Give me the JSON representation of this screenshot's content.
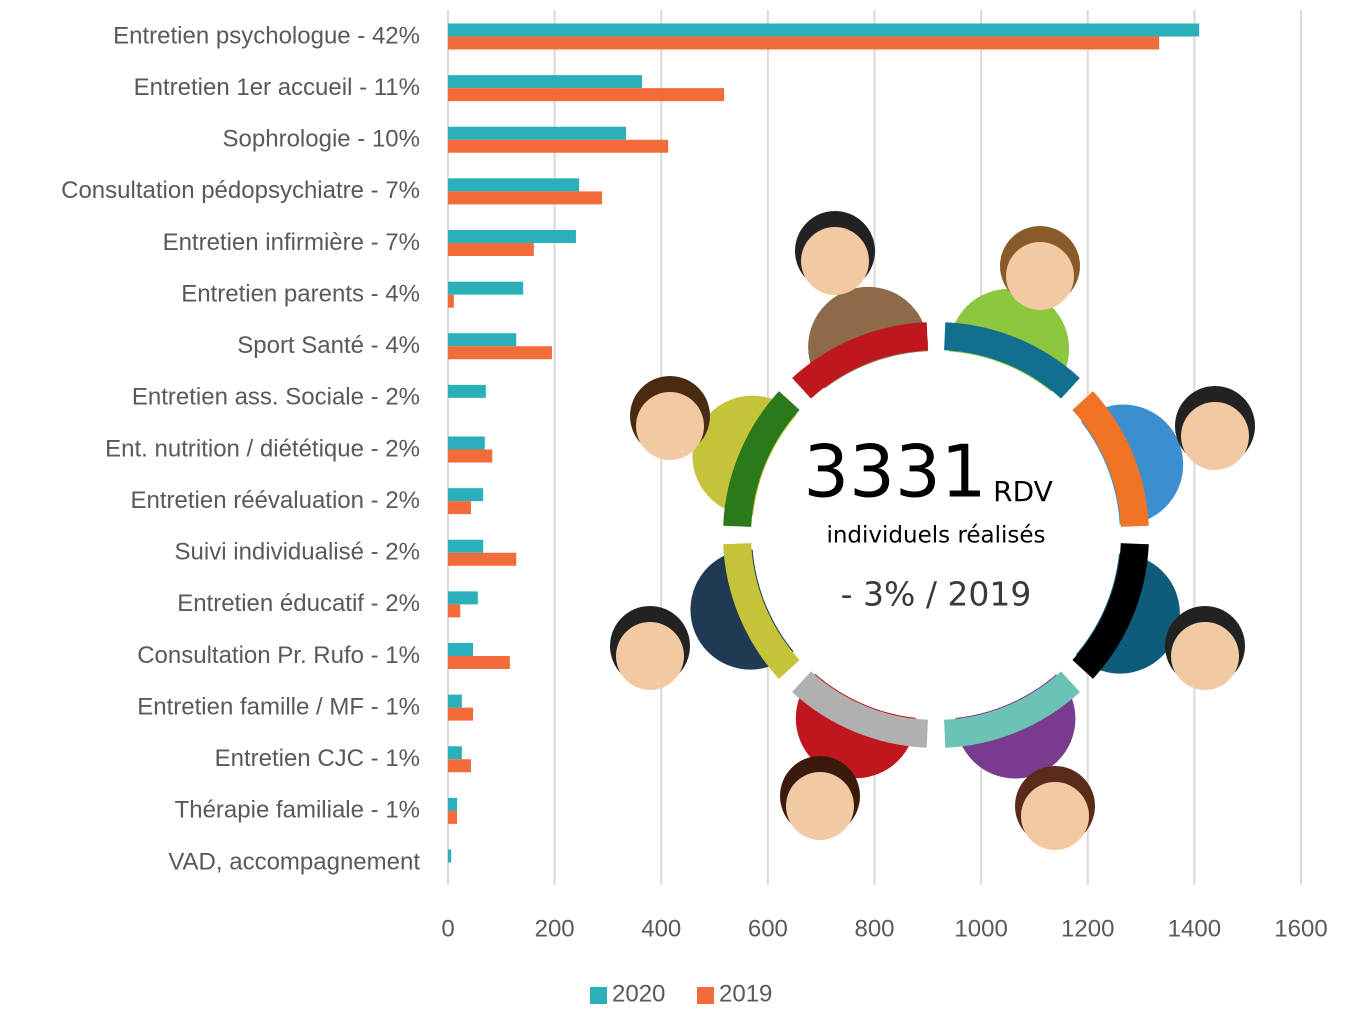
{
  "chart_data": {
    "type": "bar",
    "orientation": "horizontal",
    "categories": [
      "Entretien psychologue - 42%",
      "Entretien 1er accueil - 11%",
      "Sophrologie - 10%",
      "Consultation pédopsychiatre - 7%",
      "Entretien infirmière - 7%",
      "Entretien parents - 4%",
      "Sport Santé - 4%",
      "Entretien ass. Sociale - 2%",
      "Ent. nutrition / diététique - 2%",
      "Entretien réévaluation - 2%",
      "Suivi individualisé - 2%",
      "Entretien éducatif - 2%",
      "Consultation Pr. Rufo - 1%",
      "Entretien famille / MF - 1%",
      "Entretien CJC - 1%",
      "Thérapie familiale - 1%",
      "VAD, accompagnement"
    ],
    "series": [
      {
        "name": "2020",
        "color": "#2ab0bb",
        "values": [
          1409,
          364,
          334,
          246,
          240,
          141,
          128,
          71,
          69,
          66,
          66,
          56,
          47,
          26,
          26,
          17,
          6
        ]
      },
      {
        "name": "2019",
        "color": "#f26b3a",
        "values": [
          1334,
          518,
          413,
          289,
          161,
          11,
          195,
          0,
          83,
          43,
          128,
          23,
          116,
          47,
          43,
          17,
          0
        ]
      }
    ],
    "xlim": [
      0,
      1600
    ],
    "xticks": [
      0,
      200,
      400,
      600,
      800,
      1000,
      1200,
      1400,
      1600
    ],
    "grid": true,
    "legend": "bottom"
  },
  "infographic": {
    "number": 3331,
    "unit": "RDV",
    "caption": "individuels réalisés",
    "change": "- 3% / 2019"
  }
}
